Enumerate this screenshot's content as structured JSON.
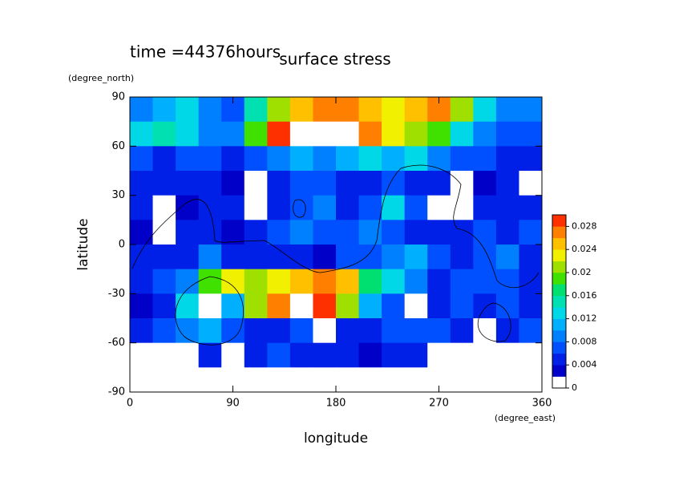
{
  "chart_data": {
    "type": "contour",
    "title": "surface stress",
    "subtitle": "time =44376hours",
    "xlabel": "longitude",
    "xunits": "(degree_east)",
    "ylabel": "latitude",
    "yunits": "(degree_north)",
    "xlim": [
      0,
      360
    ],
    "xticks": [
      0,
      90,
      180,
      270,
      360
    ],
    "ylim": [
      -90,
      90
    ],
    "yticks": [
      90,
      60,
      30,
      0,
      -30,
      -60,
      -90
    ],
    "xbins": [
      0,
      20,
      40,
      60,
      80,
      100,
      120,
      140,
      160,
      180,
      200,
      220,
      240,
      260,
      280,
      300,
      320,
      340,
      360
    ],
    "ybins": [
      90,
      75,
      60,
      45,
      30,
      15,
      0,
      -15,
      -30,
      -45,
      -60,
      -75,
      -90
    ],
    "z": [
      [
        0.008,
        0.01,
        0.012,
        0.008,
        0.006,
        0.014,
        0.02,
        0.024,
        0.026,
        0.026,
        0.024,
        0.022,
        0.024,
        0.026,
        0.02,
        0.012,
        0.008,
        0.008
      ],
      [
        0.012,
        0.014,
        0.012,
        0.008,
        0.008,
        0.018,
        0.028,
        0.034,
        0.034,
        0.03,
        0.026,
        0.022,
        0.02,
        0.018,
        0.012,
        0.008,
        0.006,
        0.006
      ],
      [
        0.006,
        0.004,
        0.006,
        0.006,
        0.004,
        0.006,
        0.008,
        0.01,
        0.008,
        0.01,
        0.012,
        0.01,
        0.012,
        0.008,
        0.006,
        0.006,
        0.004,
        0.004
      ],
      [
        0.004,
        0.004,
        0.004,
        0.004,
        0.002,
        0,
        0.004,
        0.006,
        0.006,
        0.004,
        0.004,
        0.006,
        0.004,
        0.004,
        0,
        0.002,
        0.004,
        0
      ],
      [
        0.004,
        0,
        0.002,
        0.004,
        0.004,
        0,
        0.004,
        0.006,
        0.008,
        0.004,
        0.006,
        0.012,
        0.006,
        0,
        0,
        0.004,
        0.004,
        0.004
      ],
      [
        0.002,
        0,
        0.004,
        0.004,
        0.002,
        0.004,
        0.006,
        0.008,
        0.006,
        0.006,
        0.008,
        0.006,
        0.004,
        0.004,
        0.004,
        0.006,
        0.004,
        0.006
      ],
      [
        0.004,
        0.004,
        0.004,
        0.008,
        0.004,
        0.004,
        0.004,
        0.004,
        0.002,
        0.006,
        0.006,
        0.008,
        0.01,
        0.006,
        0.004,
        0.006,
        0.008,
        0.004
      ],
      [
        0.004,
        0.006,
        0.008,
        0.018,
        0.022,
        0.02,
        0.022,
        0.024,
        0.026,
        0.024,
        0.016,
        0.012,
        0.008,
        0.004,
        0.006,
        0.006,
        0.006,
        0.004
      ],
      [
        0.002,
        0.004,
        0.012,
        0.034,
        0.01,
        0.02,
        0.026,
        0.03,
        0.028,
        0.02,
        0.01,
        0.006,
        0,
        0.004,
        0.006,
        0.004,
        0.006,
        0.004
      ],
      [
        0.004,
        0.006,
        0.008,
        0.01,
        0.006,
        0.004,
        0.004,
        0.006,
        0,
        0.004,
        0.004,
        0.006,
        0.006,
        0.006,
        0.004,
        0,
        0.004,
        0.006
      ],
      [
        0,
        0,
        0,
        0.004,
        0,
        0.004,
        0.006,
        0.004,
        0.004,
        0.004,
        0.002,
        0.004,
        0.004,
        0,
        0,
        0,
        0,
        0
      ],
      [
        0,
        0,
        0,
        0,
        0,
        0,
        0,
        0,
        0,
        0,
        0,
        0,
        0,
        0,
        0,
        0,
        0,
        0
      ]
    ],
    "colorbar": {
      "lim": [
        0,
        0.03
      ],
      "ticks": [
        0,
        0.004,
        0.008,
        0.012,
        0.016,
        0.02,
        0.024,
        0.028
      ],
      "levels": [
        0,
        0.002,
        0.004,
        0.006,
        0.008,
        0.01,
        0.012,
        0.014,
        0.016,
        0.018,
        0.02,
        0.022,
        0.024,
        0.026,
        0.028,
        0.03
      ],
      "colors": [
        "#ffffff",
        "#0000c8",
        "#0020e8",
        "#0050ff",
        "#0080ff",
        "#00b0ff",
        "#00d8e8",
        "#00e0b0",
        "#00e070",
        "#40e000",
        "#a0e000",
        "#f0f000",
        "#ffc000",
        "#ff8000",
        "#ff3000"
      ],
      "over_color": "#ffffff"
    }
  }
}
